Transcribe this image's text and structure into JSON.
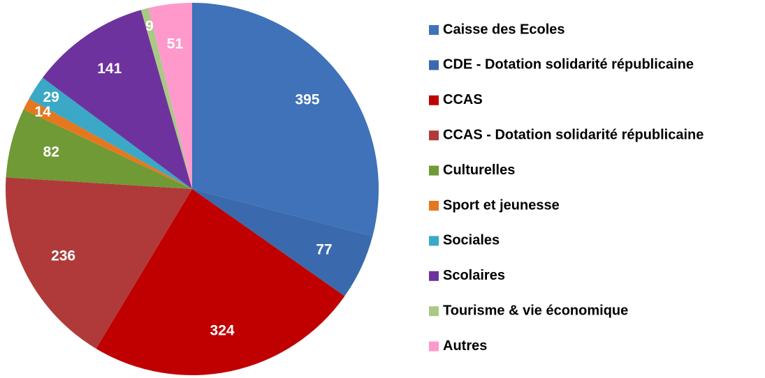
{
  "chart_data": {
    "type": "pie",
    "categories": [
      "Caisse des Ecoles",
      "CDE - Dotation solidarité républicaine",
      "CCAS",
      "CCAS - Dotation solidarité républicaine",
      "Culturelles",
      "Sport et jeunesse",
      "Sociales",
      "Scolaires",
      "Tourisme & vie économique",
      "Autres"
    ],
    "values": [
      395,
      77,
      324,
      236,
      82,
      14,
      29,
      141,
      9,
      51
    ],
    "colors": [
      "#3f72b8",
      "#3a6aad",
      "#c00000",
      "#b03a3a",
      "#6f9a35",
      "#e5781e",
      "#3aa8c6",
      "#6e329e",
      "#a9c984",
      "#ff99cc"
    ],
    "legend": "right"
  }
}
